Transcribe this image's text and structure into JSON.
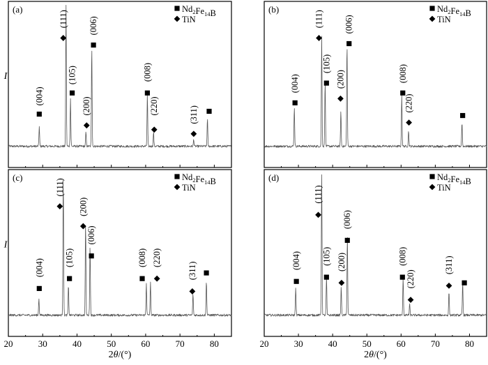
{
  "figure": {
    "x_axis_label": "2θ/(°)",
    "y_axis_label": "I",
    "x_ticks": [
      20,
      30,
      40,
      50,
      60,
      70,
      80
    ],
    "legend": [
      {
        "marker": "square",
        "label": "Nd2Fe14B"
      },
      {
        "marker": "diamond",
        "label": "TiN"
      }
    ]
  },
  "chart_data": [
    {
      "type": "line",
      "panel": "(a)",
      "xlim": [
        20,
        85
      ],
      "ylim": [
        0,
        1
      ],
      "peaks": [
        {
          "x": 29.0,
          "h": 0.14,
          "label": "(004)",
          "marker": "square",
          "label_x": 29.0,
          "marker_y": 0.24,
          "label_y": 0.3
        },
        {
          "x": 36.8,
          "h": 1.0,
          "label": "(111)",
          "marker": "diamond",
          "label_x": 36.0,
          "marker_y": 0.78,
          "label_y": 0.85
        },
        {
          "x": 38.1,
          "h": 0.34,
          "label": "(105)",
          "marker": "square",
          "label_x": 38.6,
          "marker_y": 0.39,
          "label_y": 0.45
        },
        {
          "x": 42.6,
          "h": 0.1,
          "label": "(200)",
          "marker": "diamond",
          "label_x": 42.8,
          "marker_y": 0.16,
          "label_y": 0.23
        },
        {
          "x": 44.3,
          "h": 0.71,
          "label": "(006)",
          "marker": "square",
          "label_x": 44.8,
          "marker_y": 0.73,
          "label_y": 0.8
        },
        {
          "x": 60.5,
          "h": 0.37,
          "label": "(008)",
          "marker": "square",
          "label_x": 60.5,
          "marker_y": 0.39,
          "label_y": 0.47
        },
        {
          "x": 62.3,
          "h": 0.1,
          "label": "(220)",
          "marker": "diamond",
          "label_x": 62.5,
          "marker_y": 0.13,
          "label_y": 0.23
        },
        {
          "x": 74.0,
          "h": 0.05,
          "label": "(311)",
          "marker": "diamond",
          "label_x": 74.0,
          "marker_y": 0.1,
          "label_y": 0.17
        },
        {
          "x": 78.0,
          "h": 0.2,
          "label": "",
          "marker": "square",
          "label_x": 78.5,
          "marker_y": 0.26,
          "label_y": 0.26
        }
      ]
    },
    {
      "type": "line",
      "panel": "(b)",
      "xlim": [
        20,
        85
      ],
      "ylim": [
        0,
        1
      ],
      "peaks": [
        {
          "x": 28.8,
          "h": 0.28,
          "label": "(004)",
          "marker": "square",
          "label_x": 29.0,
          "marker_y": 0.32,
          "label_y": 0.39
        },
        {
          "x": 36.8,
          "h": 0.78,
          "label": "(111)",
          "marker": "diamond",
          "label_x": 36.0,
          "marker_y": 0.78,
          "label_y": 0.85
        },
        {
          "x": 37.8,
          "h": 0.47,
          "label": "(105)",
          "marker": "square",
          "label_x": 38.2,
          "marker_y": 0.46,
          "label_y": 0.53
        },
        {
          "x": 42.4,
          "h": 0.25,
          "label": "(200)",
          "marker": "diamond",
          "label_x": 42.3,
          "marker_y": 0.35,
          "label_y": 0.42
        },
        {
          "x": 44.2,
          "h": 0.73,
          "label": "(006)",
          "marker": "square",
          "label_x": 44.8,
          "marker_y": 0.74,
          "label_y": 0.81
        },
        {
          "x": 60.2,
          "h": 0.37,
          "label": "(008)",
          "marker": "square",
          "label_x": 60.5,
          "marker_y": 0.39,
          "label_y": 0.46
        },
        {
          "x": 62.2,
          "h": 0.11,
          "label": "(220)",
          "marker": "diamond",
          "label_x": 62.3,
          "marker_y": 0.18,
          "label_y": 0.25
        },
        {
          "x": 77.8,
          "h": 0.17,
          "label": "",
          "marker": "square",
          "label_x": 78.0,
          "marker_y": 0.23,
          "label_y": 0.23
        }
      ]
    },
    {
      "type": "line",
      "panel": "(c)",
      "xlim": [
        20,
        85
      ],
      "ylim": [
        0,
        1
      ],
      "peaks": [
        {
          "x": 28.9,
          "h": 0.12,
          "label": "(004)",
          "marker": "square",
          "label_x": 29.0,
          "marker_y": 0.2,
          "label_y": 0.28
        },
        {
          "x": 36.0,
          "h": 1.0,
          "label": "(111)",
          "marker": "diamond",
          "label_x": 35.0,
          "marker_y": 0.78,
          "label_y": 0.85
        },
        {
          "x": 37.5,
          "h": 0.21,
          "label": "(105)",
          "marker": "square",
          "label_x": 37.8,
          "marker_y": 0.27,
          "label_y": 0.35
        },
        {
          "x": 42.5,
          "h": 0.66,
          "label": "(200)",
          "marker": "diamond",
          "label_x": 41.8,
          "marker_y": 0.64,
          "label_y": 0.71
        },
        {
          "x": 43.8,
          "h": 0.5,
          "label": "(006)",
          "marker": "square",
          "label_x": 44.2,
          "marker_y": 0.43,
          "label_y": 0.51
        },
        {
          "x": 60.2,
          "h": 0.23,
          "label": "(008)",
          "marker": "square",
          "label_x": 59.0,
          "marker_y": 0.27,
          "label_y": 0.35
        },
        {
          "x": 61.4,
          "h": 0.23,
          "label": "(220)",
          "marker": "diamond",
          "label_x": 63.3,
          "marker_y": 0.27,
          "label_y": 0.35
        },
        {
          "x": 73.8,
          "h": 0.15,
          "label": "(311)",
          "marker": "diamond",
          "label_x": 73.6,
          "marker_y": 0.18,
          "label_y": 0.26
        },
        {
          "x": 77.7,
          "h": 0.25,
          "label": "",
          "marker": "square",
          "label_x": 77.7,
          "marker_y": 0.31,
          "label_y": 0.31
        }
      ]
    },
    {
      "type": "line",
      "panel": "(d)",
      "xlim": [
        20,
        85
      ],
      "ylim": [
        0,
        1
      ],
      "peaks": [
        {
          "x": 29.2,
          "h": 0.2,
          "label": "(004)",
          "marker": "square",
          "label_x": 29.4,
          "marker_y": 0.25,
          "label_y": 0.33
        },
        {
          "x": 36.8,
          "h": 1.0,
          "label": "(111)",
          "marker": "diamond",
          "label_x": 35.8,
          "marker_y": 0.72,
          "label_y": 0.8
        },
        {
          "x": 38.2,
          "h": 0.27,
          "label": "(105)",
          "marker": "square",
          "label_x": 38.2,
          "marker_y": 0.28,
          "label_y": 0.36
        },
        {
          "x": 42.5,
          "h": 0.2,
          "label": "(200)",
          "marker": "diamond",
          "label_x": 42.6,
          "marker_y": 0.24,
          "label_y": 0.32
        },
        {
          "x": 44.3,
          "h": 0.57,
          "label": "(006)",
          "marker": "square",
          "label_x": 44.3,
          "marker_y": 0.54,
          "label_y": 0.62
        },
        {
          "x": 60.6,
          "h": 0.27,
          "label": "(008)",
          "marker": "square",
          "label_x": 60.4,
          "marker_y": 0.28,
          "label_y": 0.36
        },
        {
          "x": 62.5,
          "h": 0.08,
          "label": "(220)",
          "marker": "diamond",
          "label_x": 62.8,
          "marker_y": 0.12,
          "label_y": 0.2
        },
        {
          "x": 74.0,
          "h": 0.17,
          "label": "(311)",
          "marker": "diamond",
          "label_x": 74.0,
          "marker_y": 0.22,
          "label_y": 0.3
        },
        {
          "x": 78.0,
          "h": 0.23,
          "label": "",
          "marker": "square",
          "label_x": 78.5,
          "marker_y": 0.24,
          "label_y": 0.24
        }
      ]
    }
  ]
}
